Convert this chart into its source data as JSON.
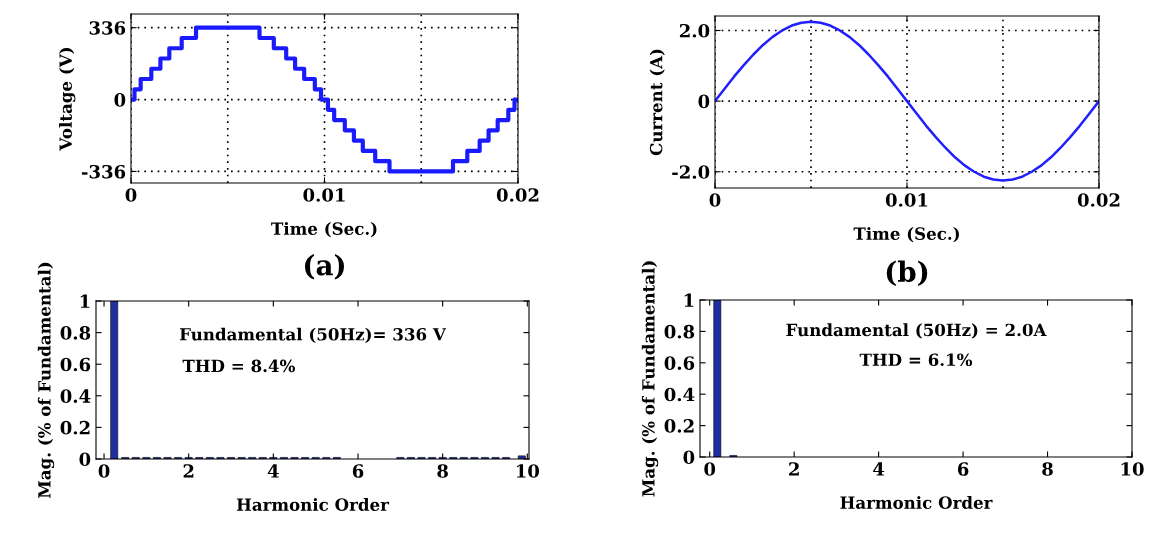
{
  "chart_data": [
    {
      "type": "step",
      "xlabel": "Time (Sec.)",
      "ylabel": "Voltage (V)",
      "annotations": [
        "(a)"
      ],
      "x": [
        0,
        0.00018,
        0.0005,
        0.00105,
        0.00152,
        0.00198,
        0.00262,
        0.00336,
        0.00664,
        0.00738,
        0.00802,
        0.00848,
        0.00895,
        0.0095,
        0.00982,
        0.01018,
        0.0105,
        0.01105,
        0.01152,
        0.01198,
        0.01262,
        0.01336,
        0.01664,
        0.01738,
        0.01802,
        0.01848,
        0.01895,
        0.0195,
        0.01982,
        0.02
      ],
      "series": [
        {
          "color": "#1a1aff",
          "values": [
            0,
            48,
            96,
            144,
            192,
            240,
            288,
            336,
            288,
            240,
            192,
            144,
            96,
            48,
            0,
            -48,
            -96,
            -144,
            -192,
            -240,
            -288,
            -336,
            -288,
            -240,
            -192,
            -144,
            -96,
            -48,
            0,
            0
          ]
        }
      ],
      "xlim": [
        0,
        0.02
      ],
      "ylim": [
        -390,
        400
      ],
      "xticks": [
        0,
        0.01,
        0.02
      ],
      "yticks": [
        -336,
        0,
        336
      ],
      "grid": true,
      "ref_lines": [
        {
          "axis": "x",
          "value": 0.005,
          "color": "#000000",
          "line_style": "dotted"
        },
        {
          "axis": "x",
          "value": 0.015,
          "color": "#000000",
          "line_style": "dotted"
        }
      ]
    },
    {
      "type": "line",
      "xlabel": "Time (Sec.)",
      "ylabel": "Current (A)",
      "annotations": [
        "(b)"
      ],
      "x": [
        0,
        0.0005,
        0.001,
        0.0015,
        0.002,
        0.0025,
        0.003,
        0.0035,
        0.004,
        0.0045,
        0.005,
        0.0055,
        0.006,
        0.0065,
        0.007,
        0.0075,
        0.008,
        0.0085,
        0.009,
        0.0095,
        0.01,
        0.0105,
        0.011,
        0.0115,
        0.012,
        0.0125,
        0.013,
        0.0135,
        0.014,
        0.0145,
        0.015,
        0.0155,
        0.016,
        0.0165,
        0.017,
        0.0175,
        0.018,
        0.0185,
        0.019,
        0.0195,
        0.02
      ],
      "series": [
        {
          "color": "#2020ff",
          "values": [
            0,
            0.35,
            0.7,
            1.02,
            1.32,
            1.59,
            1.82,
            2.0,
            2.14,
            2.22,
            2.25,
            2.22,
            2.14,
            2.0,
            1.82,
            1.59,
            1.32,
            1.02,
            0.7,
            0.35,
            0,
            -0.35,
            -0.7,
            -1.02,
            -1.32,
            -1.59,
            -1.82,
            -2.0,
            -2.14,
            -2.22,
            -2.25,
            -2.22,
            -2.14,
            -2.0,
            -1.82,
            -1.59,
            -1.32,
            -1.02,
            -0.7,
            -0.35,
            0
          ]
        }
      ],
      "ref_lines": [
        {
          "axis": "x",
          "value": 0.005,
          "color": "#000000",
          "line_style": "dotted"
        },
        {
          "axis": "x",
          "value": 0.015,
          "color": "#000000",
          "line_style": "dotted"
        }
      ],
      "xlim": [
        0,
        0.02
      ],
      "ylim": [
        -2.46,
        2.41
      ],
      "xticks": [
        0,
        0.01,
        0.02
      ],
      "yticks": [
        {
          "value": -2.0,
          "label": "-2.0"
        },
        0,
        {
          "value": 2.0,
          "label": "2.0"
        }
      ],
      "grid": true
    },
    {
      "type": "bar",
      "xlabel": "Harmonic Order",
      "ylabel": "Mag. (% of Fundamental)",
      "annotations": [
        "Fundamental (50Hz)= 336 V",
        "THD = 8.4%"
      ],
      "x": [
        0.24,
        0.5,
        0.75,
        1.0,
        1.25,
        1.5,
        1.75,
        2.0,
        2.25,
        2.5,
        2.75,
        3.0,
        3.25,
        3.5,
        3.75,
        4.0,
        4.25,
        4.5,
        4.75,
        5.0,
        5.25,
        5.5,
        7.0,
        7.25,
        7.5,
        7.75,
        8.0,
        8.25,
        8.5,
        8.75,
        9.0,
        9.25,
        9.5,
        9.87
      ],
      "series": [
        {
          "color": "#1f2f9f",
          "values": [
            1,
            0.01,
            0.01,
            0.01,
            0.01,
            0.01,
            0.01,
            0.01,
            0.01,
            0.01,
            0.01,
            0.01,
            0.01,
            0.01,
            0.01,
            0.01,
            0.01,
            0.01,
            0.01,
            0.01,
            0.01,
            0.01,
            0.01,
            0.01,
            0.01,
            0.01,
            0.01,
            0.01,
            0.01,
            0.01,
            0.01,
            0.01,
            0.01,
            0.02
          ]
        }
      ],
      "xlim": [
        -0.19,
        10.04
      ],
      "ylim": [
        0,
        1
      ],
      "xticks": [
        0,
        2,
        4,
        6,
        8,
        10
      ],
      "yticks": [
        0,
        0.2,
        0.4,
        0.6,
        0.8,
        1
      ],
      "grid": false
    },
    {
      "type": "bar",
      "xlabel": "Harmonic Order",
      "ylabel": "Mag. (% of Fundamental)",
      "annotations": [
        "Fundamental (50Hz) = 2.0A",
        "THD = 6.1%"
      ],
      "x": [
        0.18,
        0.56
      ],
      "series": [
        {
          "color": "#1f2f9f",
          "values": [
            1,
            0.01
          ]
        }
      ],
      "xlim": [
        -0.23,
        10.0
      ],
      "ylim": [
        0,
        1
      ],
      "xticks": [
        0,
        2,
        4,
        6,
        8,
        10
      ],
      "yticks": [
        0,
        0.2,
        0.4,
        0.6,
        0.8,
        1
      ],
      "grid": false
    }
  ]
}
